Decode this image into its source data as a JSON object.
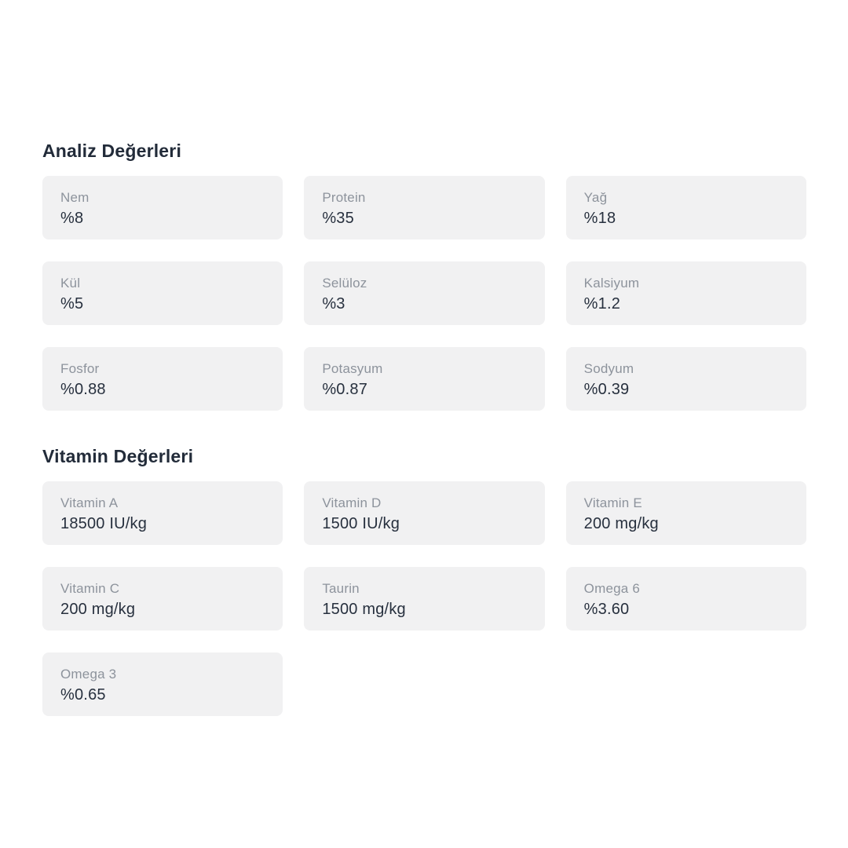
{
  "colors": {
    "page_background": "#ffffff",
    "card_background": "#f1f1f2",
    "label_text": "#8d939c",
    "value_text": "#27303e",
    "heading_text": "#222b39"
  },
  "sections": [
    {
      "title": "Analiz Değerleri",
      "items": [
        {
          "label": "Nem",
          "value": "%8"
        },
        {
          "label": "Protein",
          "value": "%35"
        },
        {
          "label": "Yağ",
          "value": "%18"
        },
        {
          "label": "Kül",
          "value": "%5"
        },
        {
          "label": "Selüloz",
          "value": "%3"
        },
        {
          "label": "Kalsiyum",
          "value": "%1.2"
        },
        {
          "label": "Fosfor",
          "value": "%0.88"
        },
        {
          "label": "Potasyum",
          "value": "%0.87"
        },
        {
          "label": "Sodyum",
          "value": "%0.39"
        }
      ]
    },
    {
      "title": "Vitamin Değerleri",
      "items": [
        {
          "label": "Vitamin A",
          "value": "18500 IU/kg"
        },
        {
          "label": "Vitamin D",
          "value": "1500 IU/kg"
        },
        {
          "label": "Vitamin E",
          "value": "200 mg/kg"
        },
        {
          "label": "Vitamin C",
          "value": "200 mg/kg"
        },
        {
          "label": "Taurin",
          "value": "1500 mg/kg"
        },
        {
          "label": "Omega 6",
          "value": "%3.60"
        },
        {
          "label": "Omega 3",
          "value": "%0.65"
        }
      ]
    }
  ]
}
